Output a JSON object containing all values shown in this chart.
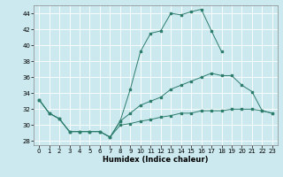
{
  "xlabel": "Humidex (Indice chaleur)",
  "xlim": [
    -0.5,
    23.5
  ],
  "ylim": [
    27.5,
    45.0
  ],
  "yticks": [
    28,
    30,
    32,
    34,
    36,
    38,
    40,
    42,
    44
  ],
  "xticks": [
    0,
    1,
    2,
    3,
    4,
    5,
    6,
    7,
    8,
    9,
    10,
    11,
    12,
    13,
    14,
    15,
    16,
    17,
    18,
    19,
    20,
    21,
    22,
    23
  ],
  "bg_color": "#cce9ef",
  "grid_color": "#ffffff",
  "line_color": "#2d7d6d",
  "line1_y": [
    33.2,
    31.5,
    30.8,
    29.2,
    29.2,
    29.2,
    29.2,
    28.5,
    30.5,
    34.5,
    39.2,
    41.5,
    41.8,
    44.0,
    43.8,
    44.2,
    44.5,
    41.8,
    39.2,
    null,
    null,
    null,
    null,
    null
  ],
  "line2_y": [
    33.2,
    31.5,
    30.8,
    29.2,
    29.2,
    29.2,
    29.2,
    28.5,
    30.5,
    31.5,
    32.5,
    33.0,
    33.5,
    34.5,
    35.0,
    35.5,
    36.0,
    36.5,
    36.2,
    36.2,
    35.0,
    34.2,
    31.8,
    31.5
  ],
  "line3_y": [
    33.2,
    31.5,
    30.8,
    29.2,
    29.2,
    29.2,
    29.2,
    28.5,
    30.0,
    30.2,
    30.5,
    30.7,
    31.0,
    31.2,
    31.5,
    31.5,
    31.8,
    31.8,
    31.8,
    32.0,
    32.0,
    32.0,
    31.8,
    31.5
  ]
}
